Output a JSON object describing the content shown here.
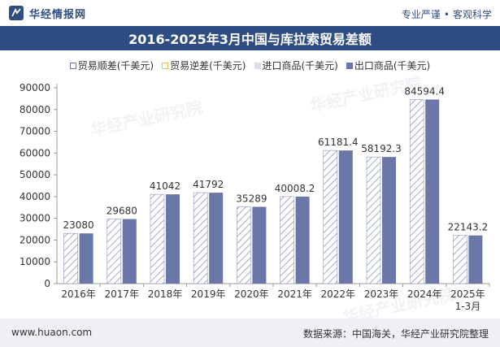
{
  "header": {
    "brand": "华经情报网",
    "tagline_left": "专业严谨",
    "tagline_sep": "•",
    "tagline_right": "客观科学"
  },
  "title": "2016-2025年3月中国与库拉索贸易差额",
  "footer": {
    "website": "www.huaon.com",
    "source": "数据来源：中国海关，华经产业研究院整理"
  },
  "watermark": "华经产业研究院",
  "colors": {
    "brand": "#2f4d83",
    "export_bar": "#6b77a8",
    "hatch": "#6b77a8"
  },
  "chart_data": {
    "type": "bar",
    "categories": [
      "2016年",
      "2017年",
      "2018年",
      "2019年",
      "2020年",
      "2021年",
      "2022年",
      "2023年",
      "2024年",
      "2025年\n1-3月"
    ],
    "series": [
      {
        "name": "贸易顺差(千美元)",
        "values": [
          23080,
          29680,
          41042,
          41792,
          35289,
          40008.2,
          61181.4,
          58192.3,
          84594.4,
          22143.2
        ]
      },
      {
        "name": "贸易逆差(千美元)",
        "values": [
          null,
          null,
          null,
          null,
          null,
          null,
          null,
          null,
          null,
          null
        ]
      },
      {
        "name": "进口商品(千美元)",
        "values": [
          0,
          0,
          0,
          0,
          0,
          0,
          0,
          0,
          0,
          0
        ]
      },
      {
        "name": "出口商品(千美元)",
        "values": [
          23080,
          29680,
          41042,
          41792,
          35289,
          40008.2,
          61181.4,
          58192.3,
          84594.4,
          22143.2
        ]
      }
    ],
    "data_labels": [
      "23080",
      "29680",
      "41042",
      "41792",
      "35289",
      "40008.2",
      "61181.4",
      "58192.3",
      "84594.4",
      "22143.2"
    ],
    "y_ticks": [
      0,
      10000,
      20000,
      30000,
      40000,
      50000,
      60000,
      70000,
      80000,
      90000
    ],
    "ylim": [
      0,
      90000
    ],
    "legend_position": "top",
    "grid": false
  }
}
